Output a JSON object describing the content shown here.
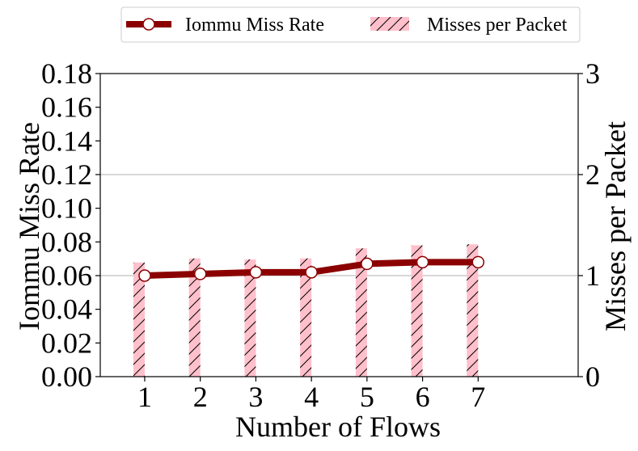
{
  "chart_data": {
    "type": "bar+line",
    "x": [
      1,
      2,
      3,
      4,
      5,
      6,
      7
    ],
    "xlabel": "Number of Flows",
    "xlim": [
      0.2,
      8.8
    ],
    "x_ticks": [
      "1",
      "2",
      "3",
      "4",
      "5",
      "6",
      "7"
    ],
    "y_left": {
      "label": "Iommu Miss Rate",
      "lim": [
        0.0,
        0.18
      ],
      "ticks": [
        "0.00",
        "0.02",
        "0.04",
        "0.06",
        "0.08",
        "0.10",
        "0.12",
        "0.14",
        "0.16",
        "0.18"
      ]
    },
    "y_right": {
      "label": "Misses per Packet",
      "lim": [
        0,
        3
      ],
      "ticks": [
        "0",
        "1",
        "2",
        "3"
      ]
    },
    "series": [
      {
        "name": "Iommu Miss Rate",
        "kind": "line",
        "axis": "left",
        "color": "#8b0000",
        "marker_fill": "#ffffff",
        "values": [
          0.06,
          0.061,
          0.062,
          0.062,
          0.067,
          0.068,
          0.068
        ]
      },
      {
        "name": "Misses per Packet",
        "kind": "bar",
        "axis": "right",
        "color": "#ffc0cb",
        "hatch": "//",
        "values": [
          1.13,
          1.17,
          1.16,
          1.17,
          1.27,
          1.3,
          1.31
        ]
      }
    ],
    "grid": "horizontal at right-axis major ticks",
    "legend": {
      "placement": "top-center, outside",
      "columns": 2
    }
  }
}
